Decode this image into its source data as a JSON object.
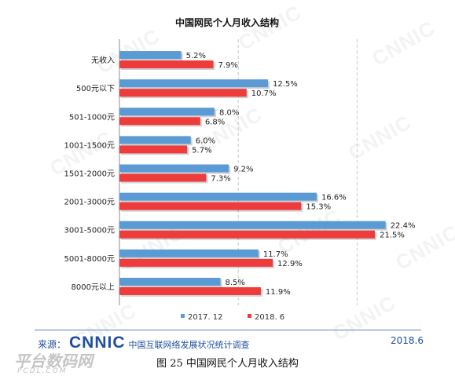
{
  "chart_data": {
    "type": "bar",
    "orientation": "horizontal",
    "title": "中国网民个人月收入结构",
    "categories": [
      "无收入",
      "500元以下",
      "501-1000元",
      "1001-1500元",
      "1501-2000元",
      "2001-3000元",
      "3001-5000元",
      "5001-8000元",
      "8000元以上"
    ],
    "series": [
      {
        "name": "2017. 12",
        "color": "#5b9bd5",
        "values": [
          5.2,
          12.5,
          8.0,
          6.0,
          9.2,
          16.6,
          22.4,
          11.7,
          8.5
        ],
        "labels": [
          "5.2%",
          "12.5%",
          "8.0%",
          "6.0%",
          "9.2%",
          "16.6%",
          "22.4%",
          "11.7%",
          "8.5%"
        ]
      },
      {
        "name": "2018. 6",
        "color": "#ee3b3b",
        "values": [
          7.9,
          10.7,
          6.8,
          5.7,
          7.3,
          15.3,
          21.5,
          12.9,
          11.9
        ],
        "labels": [
          "7.9%",
          "10.7%",
          "6.8%",
          "5.7%",
          "7.3%",
          "15.3%",
          "21.5%",
          "12.9%",
          "11.9%"
        ]
      }
    ],
    "xlim": [
      0,
      25
    ],
    "grid": "vertical-dashed",
    "legend": "bottom"
  },
  "footer": {
    "source_label": "来源：",
    "brand": "CNNIC",
    "org": "中国互联网络发展状况统计调查",
    "date": "2018.6"
  },
  "caption": "图 25    中国网民个人月收入结构",
  "watermark": {
    "text": "CNNIC",
    "site_logo": "平台数码网",
    "site_sub": "PCDL.COM"
  }
}
